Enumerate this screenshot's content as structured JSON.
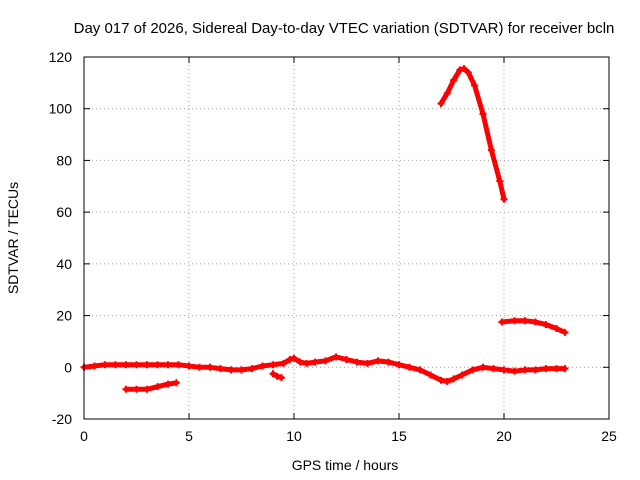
{
  "chart_data": {
    "type": "scatter",
    "title": "Day 017 of 2026, Sidereal Day-to-day VTEC variation (SDTVAR) for receiver bcln",
    "xlabel": "GPS time / hours",
    "ylabel": "SDTVAR / TECUs",
    "xlim": [
      0,
      25
    ],
    "ylim": [
      -20,
      120
    ],
    "xticks": [
      0,
      5,
      10,
      15,
      20,
      25
    ],
    "yticks": [
      -20,
      0,
      20,
      40,
      60,
      80,
      100,
      120
    ],
    "grid": true,
    "marker": "plus",
    "series_color": "#ff0000",
    "series": [
      {
        "name": "main-trace",
        "x": [
          0.0,
          0.5,
          1.0,
          1.5,
          2.0,
          2.5,
          3.0,
          3.5,
          4.0,
          4.5,
          5.0,
          5.5,
          6.0,
          6.5,
          7.0,
          7.5,
          8.0,
          8.5,
          9.0,
          9.5,
          9.8,
          10.0,
          10.3,
          10.6,
          11.0,
          11.5,
          12.0,
          12.5,
          13.0,
          13.5,
          14.0,
          14.5,
          15.0,
          15.5,
          16.0,
          16.5,
          17.0,
          17.3,
          17.6,
          18.0,
          18.5,
          19.0,
          19.5,
          20.0,
          20.5,
          21.0,
          21.5,
          22.0,
          22.5,
          22.9
        ],
        "y": [
          0,
          0.5,
          1,
          1,
          1,
          1,
          1,
          1,
          1,
          1,
          0.5,
          0,
          0,
          -0.5,
          -1,
          -1,
          -0.5,
          0.5,
          1,
          1.5,
          3,
          3.5,
          2,
          1.5,
          2,
          2.5,
          4,
          3,
          2,
          1.5,
          2.5,
          2,
          1,
          0,
          -1,
          -3,
          -5,
          -5.5,
          -4.5,
          -3,
          -1,
          0,
          -0.5,
          -1,
          -1.5,
          -1,
          -1,
          -0.5,
          -0.5,
          -0.5
        ]
      },
      {
        "name": "low-arc",
        "x": [
          2.0,
          2.5,
          3.0,
          3.5,
          4.0,
          4.4
        ],
        "y": [
          -8.5,
          -8.5,
          -8.5,
          -7.5,
          -6.5,
          -6
        ]
      },
      {
        "name": "short-dip",
        "x": [
          9.0,
          9.2,
          9.4
        ],
        "y": [
          -2.5,
          -3.5,
          -4
        ]
      },
      {
        "name": "high-arc",
        "x": [
          17.0,
          17.3,
          17.6,
          17.9,
          18.1,
          18.3,
          18.6,
          19.0,
          19.4,
          19.8,
          20.0
        ],
        "y": [
          102,
          106,
          111,
          115,
          115.5,
          114,
          109,
          98,
          84,
          72,
          65
        ]
      },
      {
        "name": "mid-arc",
        "x": [
          19.9,
          20.5,
          21.0,
          21.5,
          22.0,
          22.5,
          22.9
        ],
        "y": [
          17.5,
          18,
          18,
          17.5,
          16.5,
          15,
          13.5
        ]
      }
    ]
  }
}
